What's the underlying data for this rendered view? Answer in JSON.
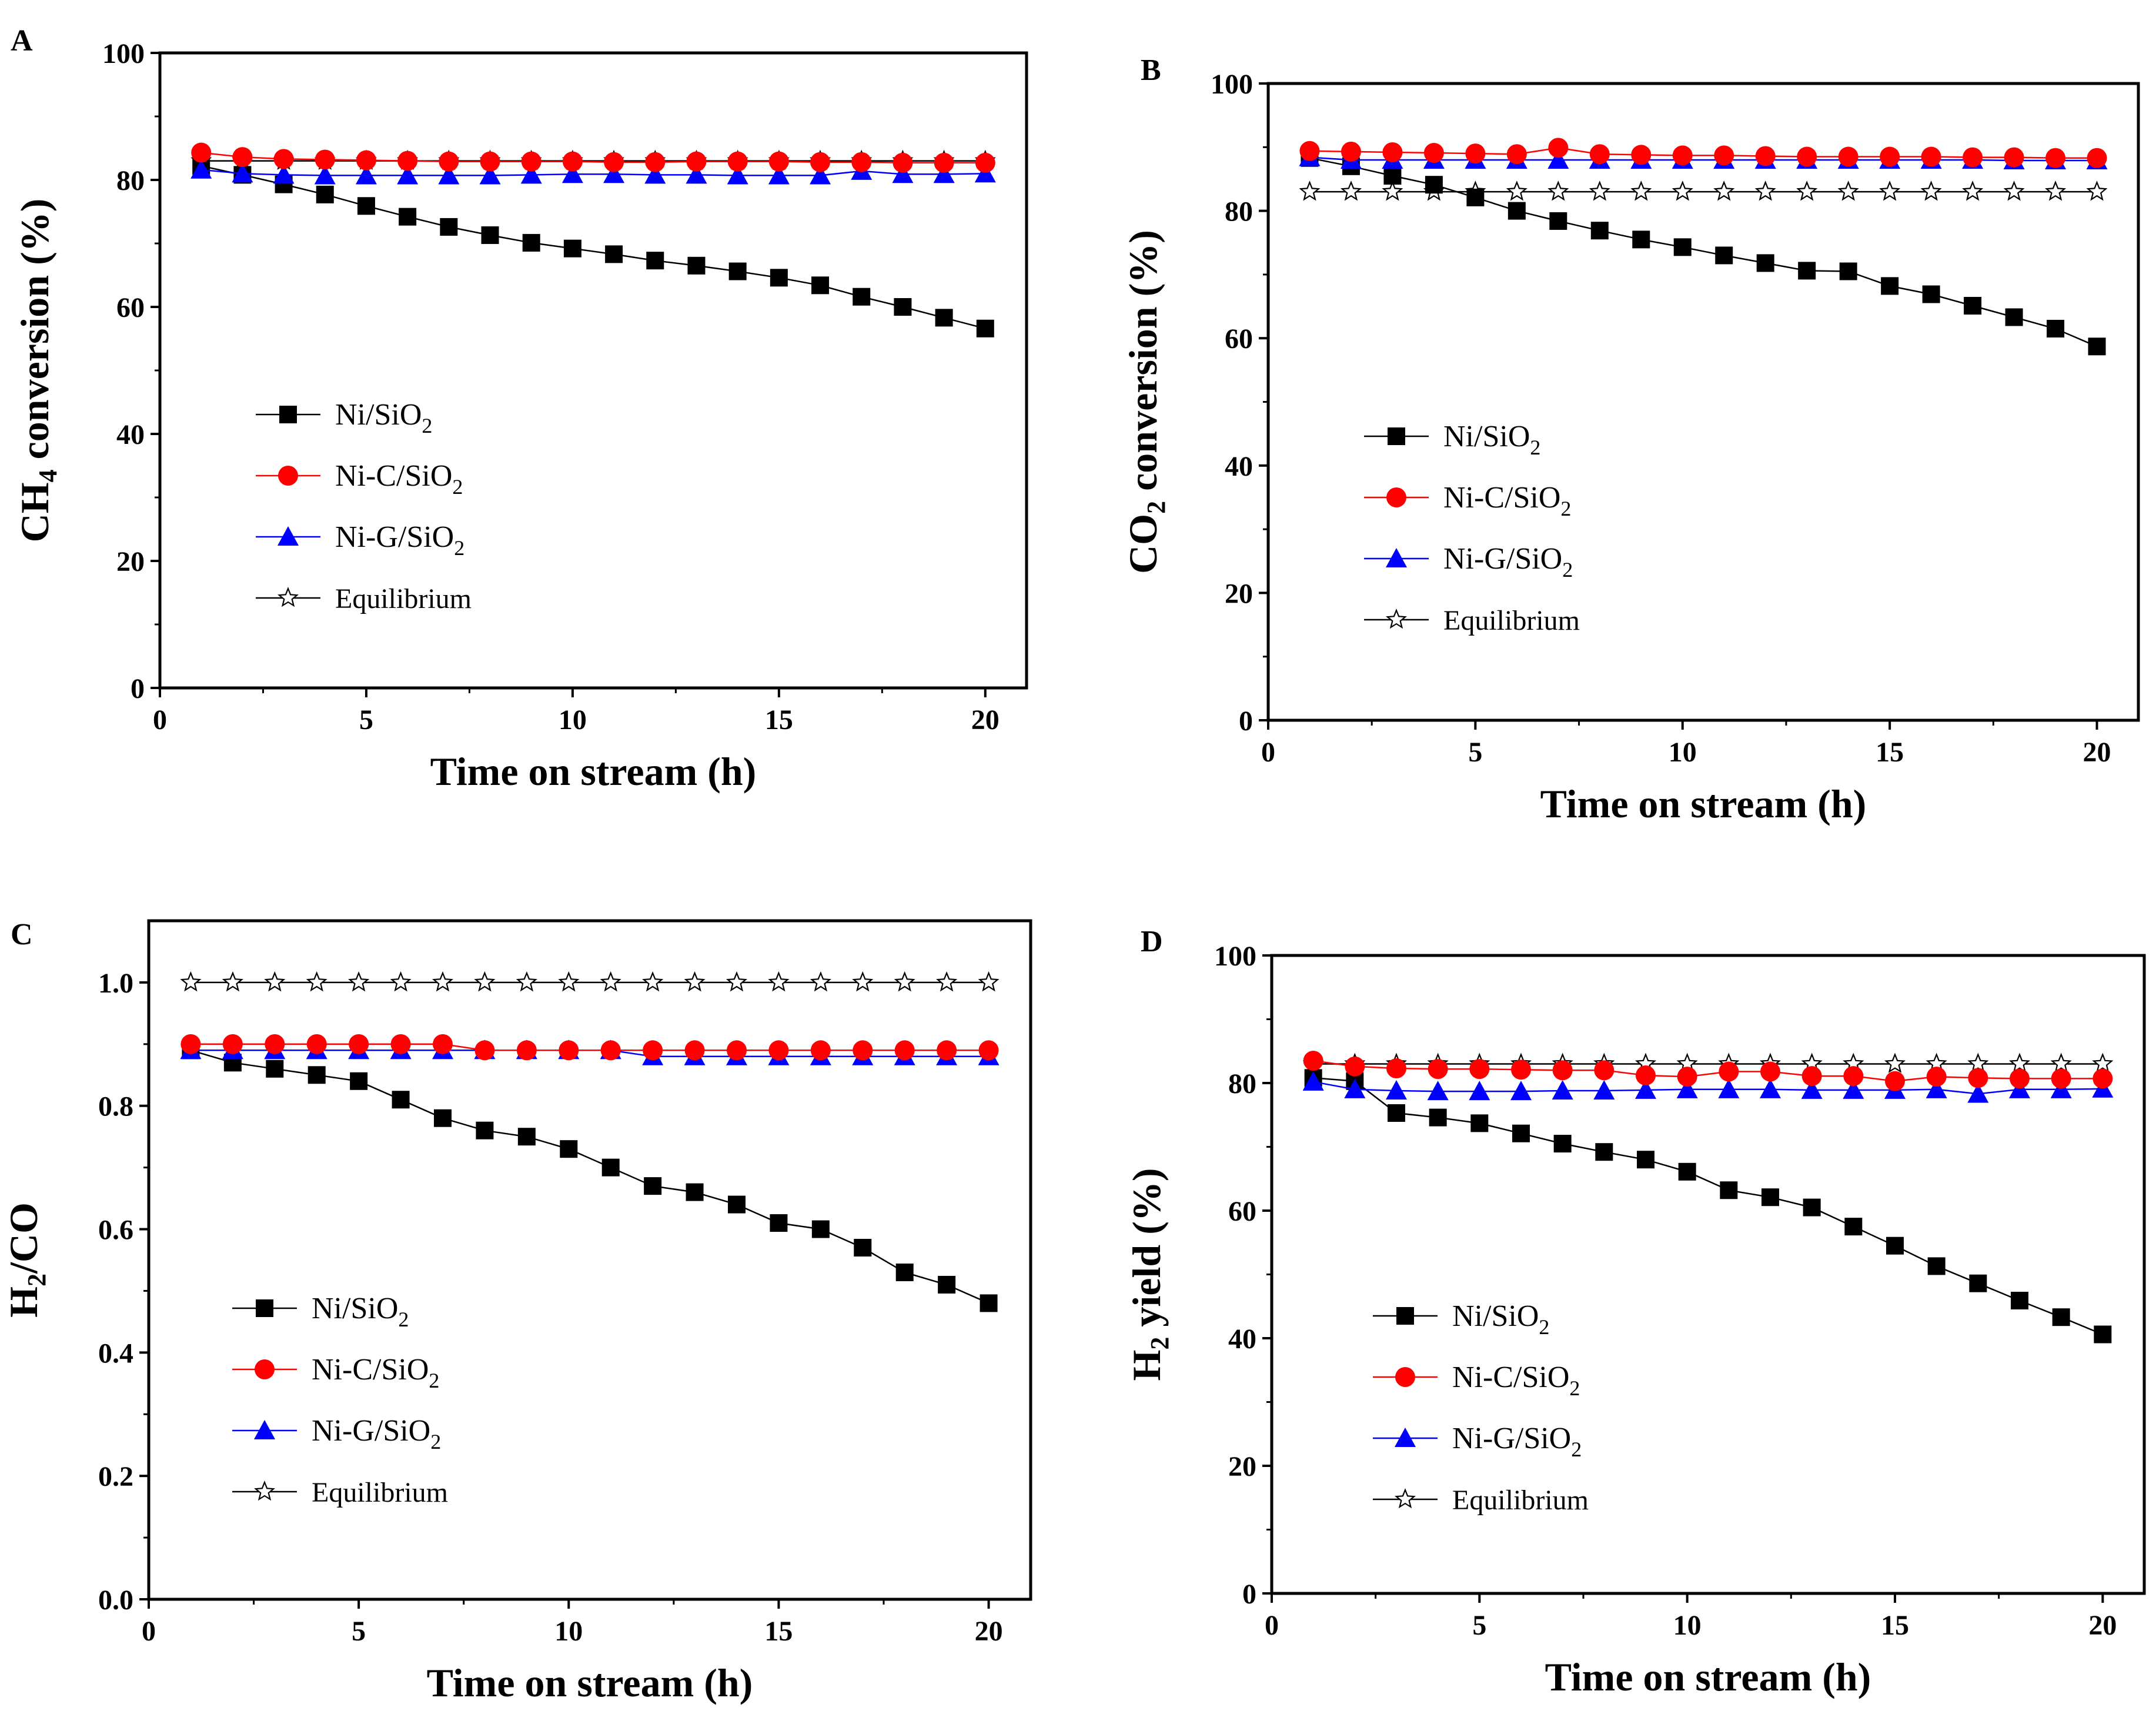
{
  "figure": {
    "series_style": [
      {
        "name": "Ni/SiO₂",
        "color": "#000000",
        "marker": "square"
      },
      {
        "name": "Ni-C/SiO₂",
        "color": "#ff0000",
        "marker": "circle"
      },
      {
        "name": "Ni-G/SiO₂",
        "color": "#0000ff",
        "marker": "triangle"
      },
      {
        "name": "Equilibrium",
        "color": "#000000",
        "marker": "star"
      }
    ]
  },
  "chart_data": [
    {
      "panel": "A",
      "type": "line",
      "xlabel": "Time on stream (h)",
      "ylabel": "CH4 conversion (%)",
      "ylabel_parts": {
        "main": "CH",
        "sub": "4",
        "rest": " conversion (%)"
      },
      "xlim": [
        0,
        21
      ],
      "ylim": [
        0,
        100
      ],
      "xticks": [
        0,
        5,
        10,
        15,
        20
      ],
      "yticks": [
        0,
        20,
        40,
        60,
        80,
        100
      ],
      "ytick_labels": [
        "0",
        "20",
        "40",
        "60",
        "80",
        "100"
      ],
      "x": [
        1,
        2,
        3,
        4,
        5,
        6,
        7,
        8,
        9,
        10,
        11,
        12,
        13,
        14,
        15,
        16,
        17,
        18,
        19,
        20
      ],
      "series": [
        {
          "name": "Ni/SiO2",
          "label_main": "Ni/SiO",
          "label_sub": "2",
          "values": [
            82.2,
            80.8,
            79.3,
            77.7,
            75.9,
            74.2,
            72.6,
            71.3,
            70.1,
            69.2,
            68.3,
            67.3,
            66.5,
            65.6,
            64.6,
            63.4,
            61.6,
            60.0,
            58.3,
            56.6
          ]
        },
        {
          "name": "Ni-C/SiO2",
          "label_main": "Ni-C/SiO",
          "label_sub": "2",
          "values": [
            84.3,
            83.6,
            83.3,
            83.2,
            83.1,
            83.0,
            82.9,
            82.9,
            82.9,
            82.9,
            82.8,
            82.8,
            82.9,
            82.9,
            82.9,
            82.8,
            82.8,
            82.7,
            82.7,
            82.7
          ]
        },
        {
          "name": "Ni-G/SiO2",
          "label_main": "Ni-G/SiO",
          "label_sub": "2",
          "values": [
            81.6,
            81.0,
            80.8,
            80.7,
            80.7,
            80.7,
            80.7,
            80.7,
            80.8,
            80.9,
            80.9,
            80.8,
            80.8,
            80.7,
            80.7,
            80.7,
            81.4,
            80.9,
            80.9,
            81.0
          ]
        },
        {
          "name": "Equilibrium",
          "label_main": "Equilibrium",
          "label_sub": "",
          "values": [
            83,
            83,
            83,
            83,
            83,
            83,
            83,
            83,
            83,
            83,
            83,
            83,
            83,
            83,
            83,
            83,
            83,
            83,
            83,
            83
          ]
        }
      ]
    },
    {
      "panel": "B",
      "type": "line",
      "xlabel": "Time on stream (h)",
      "ylabel": "CO2 conversion (%)",
      "ylabel_parts": {
        "main": "CO",
        "sub": "2",
        "rest": " conversion (%)"
      },
      "xlim": [
        0,
        21
      ],
      "ylim": [
        0,
        100
      ],
      "xticks": [
        0,
        5,
        10,
        15,
        20
      ],
      "yticks": [
        0,
        20,
        40,
        60,
        80,
        100
      ],
      "ytick_labels": [
        "0",
        "20",
        "40",
        "60",
        "80",
        "100"
      ],
      "x": [
        1,
        2,
        3,
        4,
        5,
        6,
        7,
        8,
        9,
        10,
        11,
        12,
        13,
        14,
        15,
        16,
        17,
        18,
        19,
        20
      ],
      "series": [
        {
          "name": "Ni/SiO2",
          "label_main": "Ni/SiO",
          "label_sub": "2",
          "values": [
            88.3,
            87.0,
            85.5,
            84.1,
            82.1,
            80.0,
            78.4,
            76.9,
            75.5,
            74.3,
            73.0,
            71.8,
            70.6,
            70.5,
            68.2,
            66.9,
            65.1,
            63.3,
            61.5,
            58.7
          ]
        },
        {
          "name": "Ni-C/SiO2",
          "label_main": "Ni-C/SiO",
          "label_sub": "2",
          "values": [
            89.4,
            89.3,
            89.2,
            89.1,
            89.0,
            88.9,
            89.9,
            88.9,
            88.8,
            88.7,
            88.7,
            88.6,
            88.5,
            88.5,
            88.5,
            88.5,
            88.4,
            88.4,
            88.3,
            88.3
          ]
        },
        {
          "name": "Ni-G/SiO2",
          "label_main": "Ni-G/SiO",
          "label_sub": "2",
          "values": [
            88.4,
            88.0,
            88.0,
            88.0,
            88.0,
            88.0,
            88.0,
            88.0,
            88.0,
            88.0,
            88.0,
            88.0,
            88.0,
            88.0,
            88.0,
            88.0,
            88.0,
            87.9,
            87.9,
            87.9
          ]
        },
        {
          "name": "Equilibrium",
          "label_main": "Equilibrium",
          "label_sub": "",
          "values": [
            83,
            83,
            83,
            83,
            83,
            83,
            83,
            83,
            83,
            83,
            83,
            83,
            83,
            83,
            83,
            83,
            83,
            83,
            83,
            83
          ]
        }
      ]
    },
    {
      "panel": "C",
      "type": "line",
      "xlabel": "Time on stream (h)",
      "ylabel": "H2/CO",
      "ylabel_parts": {
        "main": "H",
        "sub": "2",
        "rest": "/CO"
      },
      "xlim": [
        0,
        21
      ],
      "ylim": [
        0,
        1.1
      ],
      "xticks": [
        0,
        5,
        10,
        15,
        20
      ],
      "yticks": [
        0,
        0.2,
        0.4,
        0.6,
        0.8,
        1.0
      ],
      "ytick_labels": [
        "0.0",
        "0.2",
        "0.4",
        "0.6",
        "0.8",
        "1.0"
      ],
      "x": [
        1,
        2,
        3,
        4,
        5,
        6,
        7,
        8,
        9,
        10,
        11,
        12,
        13,
        14,
        15,
        16,
        17,
        18,
        19,
        20
      ],
      "series": [
        {
          "name": "Ni/SiO2",
          "label_main": "Ni/SiO",
          "label_sub": "2",
          "values": [
            0.89,
            0.87,
            0.86,
            0.85,
            0.84,
            0.81,
            0.78,
            0.76,
            0.75,
            0.73,
            0.7,
            0.67,
            0.66,
            0.64,
            0.61,
            0.6,
            0.57,
            0.53,
            0.51,
            0.48
          ]
        },
        {
          "name": "Ni-C/SiO2",
          "label_main": "Ni-C/SiO",
          "label_sub": "2",
          "values": [
            0.9,
            0.9,
            0.9,
            0.9,
            0.9,
            0.9,
            0.9,
            0.89,
            0.89,
            0.89,
            0.89,
            0.89,
            0.89,
            0.89,
            0.89,
            0.89,
            0.89,
            0.89,
            0.89,
            0.89
          ]
        },
        {
          "name": "Ni-G/SiO2",
          "label_main": "Ni-G/SiO",
          "label_sub": "2",
          "values": [
            0.89,
            0.89,
            0.89,
            0.89,
            0.89,
            0.89,
            0.89,
            0.89,
            0.89,
            0.89,
            0.89,
            0.88,
            0.88,
            0.88,
            0.88,
            0.88,
            0.88,
            0.88,
            0.88,
            0.88
          ]
        },
        {
          "name": "Equilibrium",
          "label_main": "Equilibrium",
          "label_sub": "",
          "values": [
            1.0,
            1.0,
            1.0,
            1.0,
            1.0,
            1.0,
            1.0,
            1.0,
            1.0,
            1.0,
            1.0,
            1.0,
            1.0,
            1.0,
            1.0,
            1.0,
            1.0,
            1.0,
            1.0,
            1.0
          ]
        }
      ]
    },
    {
      "panel": "D",
      "type": "line",
      "xlabel": "Time on stream (h)",
      "ylabel": "H2 yield (%)",
      "ylabel_parts": {
        "main": "H",
        "sub": "2",
        "rest": " yield (%)"
      },
      "xlim": [
        0,
        21
      ],
      "ylim": [
        0,
        100
      ],
      "xticks": [
        0,
        5,
        10,
        15,
        20
      ],
      "yticks": [
        0,
        20,
        40,
        60,
        80,
        100
      ],
      "ytick_labels": [
        "0",
        "20",
        "40",
        "60",
        "80",
        "100"
      ],
      "x": [
        1,
        2,
        3,
        4,
        5,
        6,
        7,
        8,
        9,
        10,
        11,
        12,
        13,
        14,
        15,
        16,
        17,
        18,
        19,
        20
      ],
      "series": [
        {
          "name": "Ni/SiO2",
          "label_main": "Ni/SiO",
          "label_sub": "2",
          "values": [
            80.8,
            80.3,
            75.3,
            74.6,
            73.7,
            72.1,
            70.5,
            69.2,
            68.0,
            66.1,
            63.2,
            62.1,
            60.5,
            57.5,
            54.5,
            51.3,
            48.6,
            45.9,
            43.3,
            40.6
          ]
        },
        {
          "name": "Ni-C/SiO2",
          "label_main": "Ni-C/SiO",
          "label_sub": "2",
          "values": [
            83.5,
            82.6,
            82.3,
            82.2,
            82.2,
            82.1,
            82.0,
            82.0,
            81.2,
            81.0,
            81.8,
            81.8,
            81.1,
            81.1,
            80.3,
            81.0,
            80.8,
            80.7,
            80.7,
            80.7
          ]
        },
        {
          "name": "Ni-G/SiO2",
          "label_main": "Ni-G/SiO",
          "label_sub": "2",
          "values": [
            80.2,
            79.0,
            78.8,
            78.7,
            78.7,
            78.7,
            78.8,
            78.8,
            78.9,
            79.0,
            79.0,
            79.0,
            78.9,
            78.9,
            78.9,
            79.0,
            78.3,
            79.0,
            79.0,
            79.1
          ]
        },
        {
          "name": "Equilibrium",
          "label_main": "Equilibrium",
          "label_sub": "",
          "values": [
            83,
            83,
            83,
            83,
            83,
            83,
            83,
            83,
            83,
            83,
            83,
            83,
            83,
            83,
            83,
            83,
            83,
            83,
            83,
            83
          ]
        }
      ]
    }
  ]
}
